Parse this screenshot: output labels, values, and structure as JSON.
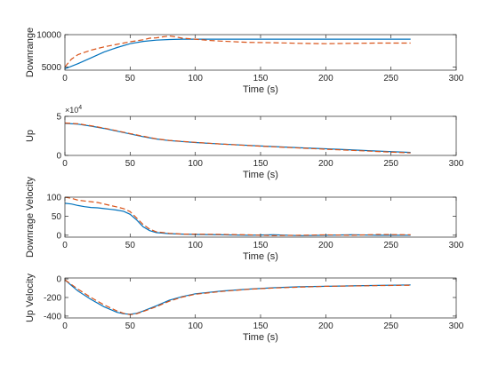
{
  "figure": {
    "colors": {
      "axes": "#262626",
      "series_solid": "#0072BD",
      "series_dashed": "#D95319"
    }
  },
  "chart_data": [
    {
      "type": "line",
      "xlabel": "Time (s)",
      "ylabel": "Downrange",
      "xlim": [
        0,
        300
      ],
      "ylim": [
        4500,
        10000
      ],
      "xticks": [
        0,
        50,
        100,
        150,
        200,
        250,
        300
      ],
      "yticks": [
        5000,
        10000
      ],
      "tick_labels": {
        "y": [
          "5000",
          "10000"
        ]
      },
      "exponent_label": "",
      "series": [
        {
          "style": "solid",
          "x": [
            0,
            10,
            20,
            30,
            40,
            50,
            60,
            70,
            80,
            90,
            100,
            120,
            140,
            160,
            180,
            200,
            220,
            240,
            265
          ],
          "y": [
            4700,
            5500,
            6400,
            7300,
            8000,
            8600,
            8950,
            9150,
            9250,
            9300,
            9300,
            9300,
            9300,
            9300,
            9300,
            9300,
            9300,
            9300,
            9300
          ]
        },
        {
          "style": "dashed",
          "x": [
            0,
            5,
            10,
            20,
            30,
            40,
            50,
            60,
            65,
            70,
            75,
            80,
            85,
            90,
            100,
            110,
            120,
            140,
            160,
            180,
            200,
            220,
            240,
            265
          ],
          "y": [
            5000,
            6200,
            6900,
            7600,
            8100,
            8500,
            8900,
            9200,
            9450,
            9500,
            9650,
            9800,
            9650,
            9450,
            9300,
            9100,
            9000,
            8800,
            8750,
            8650,
            8600,
            8650,
            8700,
            8700
          ]
        }
      ]
    },
    {
      "type": "line",
      "xlabel": "Time (s)",
      "ylabel": "Up",
      "xlim": [
        0,
        300
      ],
      "ylim": [
        0,
        50000
      ],
      "xticks": [
        0,
        50,
        100,
        150,
        200,
        250,
        300
      ],
      "yticks": [
        0,
        50000
      ],
      "tick_labels": {
        "y": [
          "0",
          "5"
        ]
      },
      "exponent_label": "×10",
      "exponent_power": "4",
      "series": [
        {
          "style": "solid",
          "x": [
            0,
            10,
            20,
            30,
            40,
            50,
            60,
            70,
            80,
            100,
            120,
            150,
            180,
            210,
            240,
            265
          ],
          "y": [
            41000,
            40000,
            37500,
            34500,
            31000,
            27500,
            24000,
            21000,
            19000,
            16500,
            14500,
            12000,
            9800,
            7800,
            5600,
            3900
          ]
        },
        {
          "style": "dashed",
          "x": [
            0,
            10,
            20,
            30,
            40,
            50,
            60,
            70,
            80,
            100,
            120,
            150,
            180,
            210,
            240,
            265
          ],
          "y": [
            41500,
            40500,
            38000,
            35000,
            31500,
            28000,
            24500,
            21200,
            19200,
            16700,
            14600,
            11800,
            9400,
            7200,
            5000,
            3200
          ]
        }
      ]
    },
    {
      "type": "line",
      "xlabel": "Time (s)",
      "ylabel": "Downrage Velocity",
      "xlim": [
        0,
        300
      ],
      "ylim": [
        -5,
        100
      ],
      "xticks": [
        0,
        50,
        100,
        150,
        200,
        250,
        300
      ],
      "yticks": [
        0,
        50,
        100
      ],
      "tick_labels": {
        "y": [
          "0",
          "50",
          "100"
        ]
      },
      "exponent_label": "",
      "series": [
        {
          "style": "solid",
          "x": [
            0,
            5,
            10,
            15,
            20,
            25,
            30,
            35,
            40,
            45,
            50,
            55,
            60,
            65,
            70,
            80,
            90,
            100,
            120,
            140,
            160,
            180,
            200,
            220,
            240,
            265
          ],
          "y": [
            84,
            82,
            78,
            75,
            73,
            72,
            70,
            68,
            66,
            63,
            55,
            40,
            22,
            12,
            7,
            4,
            3,
            2,
            1,
            0,
            1,
            -1,
            0,
            1,
            0,
            0
          ]
        },
        {
          "style": "dashed",
          "x": [
            0,
            5,
            10,
            15,
            20,
            25,
            30,
            35,
            40,
            45,
            50,
            55,
            60,
            65,
            70,
            80,
            90,
            100,
            120,
            140,
            160,
            180,
            200,
            220,
            240,
            265
          ],
          "y": [
            100,
            97,
            92,
            90,
            88,
            86,
            82,
            78,
            74,
            70,
            62,
            45,
            28,
            16,
            9,
            5,
            3,
            3,
            2,
            1,
            -1,
            0,
            1,
            0,
            2,
            1
          ]
        }
      ]
    },
    {
      "type": "line",
      "xlabel": "Time (s)",
      "ylabel": "Up Velocity",
      "xlim": [
        0,
        300
      ],
      "ylim": [
        -420,
        10
      ],
      "xticks": [
        0,
        50,
        100,
        150,
        200,
        250,
        300
      ],
      "yticks": [
        -400,
        -200,
        0
      ],
      "tick_labels": {
        "y": [
          "-400",
          "-200",
          "0"
        ]
      },
      "exponent_label": "",
      "series": [
        {
          "style": "solid",
          "x": [
            0,
            5,
            10,
            20,
            30,
            40,
            45,
            50,
            55,
            60,
            70,
            80,
            90,
            100,
            120,
            140,
            160,
            180,
            200,
            220,
            240,
            265
          ],
          "y": [
            -10,
            -70,
            -130,
            -220,
            -300,
            -360,
            -375,
            -380,
            -370,
            -345,
            -290,
            -230,
            -190,
            -160,
            -130,
            -110,
            -95,
            -85,
            -80,
            -75,
            -70,
            -65
          ]
        },
        {
          "style": "dashed",
          "x": [
            0,
            5,
            10,
            20,
            30,
            40,
            45,
            50,
            55,
            60,
            70,
            80,
            90,
            100,
            120,
            140,
            160,
            180,
            200,
            220,
            240,
            265
          ],
          "y": [
            -10,
            -60,
            -110,
            -200,
            -280,
            -345,
            -370,
            -385,
            -375,
            -350,
            -300,
            -240,
            -195,
            -165,
            -135,
            -112,
            -98,
            -88,
            -80,
            -76,
            -72,
            -68
          ]
        }
      ]
    }
  ]
}
